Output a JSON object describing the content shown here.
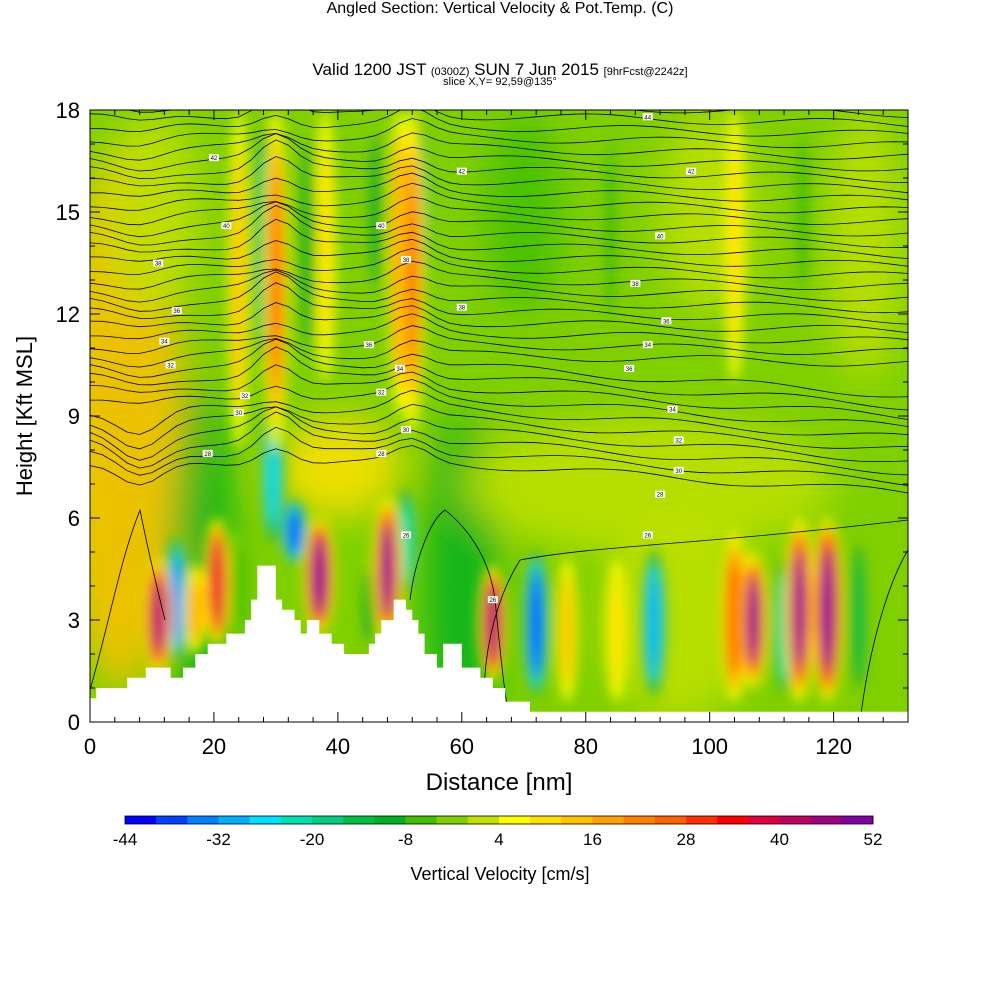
{
  "title": {
    "main": "Angled Section: Vertical Velocity & Pot.Temp.",
    "tag": "(C)",
    "valid_prefix": "Valid 1200 JST",
    "valid_utc": "(0300Z)",
    "valid_date": "SUN 7 Jun 2015",
    "forecast": "[9hrFcst@2242z]",
    "slice": "slice X,Y= 92,59@135°"
  },
  "chart_data": {
    "type": "heatmap",
    "xlabel": "Distance [nm]",
    "ylabel": "Height [Kft MSL]",
    "xlim": [
      0,
      132
    ],
    "ylim": [
      0,
      18
    ],
    "x_ticks": [
      0,
      20,
      40,
      60,
      80,
      100,
      120
    ],
    "y_ticks": [
      0,
      3,
      6,
      9,
      12,
      15,
      18
    ],
    "colorbar": {
      "label": "Vertical Velocity [cm/s]",
      "min": -44,
      "step": 4,
      "tick_labels": [
        "-44",
        "-32",
        "-20",
        "-8",
        "4",
        "16",
        "28",
        "40",
        "52"
      ],
      "colors": [
        "#0000ff",
        "#0040ff",
        "#0080ff",
        "#00b0ff",
        "#00e0ff",
        "#00e0b0",
        "#00d080",
        "#00c040",
        "#00b020",
        "#40c000",
        "#80d000",
        "#c0e000",
        "#ffff00",
        "#ffe000",
        "#ffc000",
        "#ffa000",
        "#ff8000",
        "#ff6000",
        "#ff3000",
        "#ff0000",
        "#e00040",
        "#c00060",
        "#a00080",
        "#8000a0"
      ]
    },
    "updrafts": [
      {
        "x": 11,
        "z_low": 1.4,
        "z_high": 4.8,
        "w": 44
      },
      {
        "x": 17,
        "z_low": 2.0,
        "z_high": 4.6,
        "w": 18
      },
      {
        "x": 20.5,
        "z_low": 2.2,
        "z_high": 6.0,
        "w": 38
      },
      {
        "x": 30,
        "z_low": 8.0,
        "z_high": 18.0,
        "w": 26
      },
      {
        "x": 37,
        "z_low": 2.6,
        "z_high": 6.0,
        "w": 52
      },
      {
        "x": 48,
        "z_low": 2.4,
        "z_high": 6.6,
        "w": 48
      },
      {
        "x": 52,
        "z_low": 8.5,
        "z_high": 18.0,
        "w": 24
      },
      {
        "x": 65,
        "z_low": 1.2,
        "z_high": 4.6,
        "w": 44
      },
      {
        "x": 77,
        "z_low": 0.6,
        "z_high": 4.8,
        "w": 12
      },
      {
        "x": 85,
        "z_low": 0.6,
        "z_high": 4.8,
        "w": 10
      },
      {
        "x": 104,
        "z_low": 0.6,
        "z_high": 5.6,
        "w": 30
      },
      {
        "x": 107,
        "z_low": 1.0,
        "z_high": 5.0,
        "w": 48
      },
      {
        "x": 114.5,
        "z_low": 0.6,
        "z_high": 6.0,
        "w": 48
      },
      {
        "x": 119,
        "z_low": 0.6,
        "z_high": 6.0,
        "w": 52
      }
    ],
    "downdrafts": [
      {
        "x": 14,
        "z_low": 1.6,
        "z_high": 5.6,
        "w": -36
      },
      {
        "x": 24,
        "z_low": 2.4,
        "z_high": 5.6,
        "w": -8
      },
      {
        "x": 29.5,
        "z_low": 5.0,
        "z_high": 9.5,
        "w": -28
      },
      {
        "x": 33,
        "z_low": 4.6,
        "z_high": 6.6,
        "w": -40
      },
      {
        "x": 45,
        "z_low": 2.0,
        "z_high": 4.8,
        "w": -12
      },
      {
        "x": 51,
        "z_low": 3.6,
        "z_high": 7.0,
        "w": -24
      },
      {
        "x": 72,
        "z_low": 0.6,
        "z_high": 5.2,
        "w": -40
      },
      {
        "x": 91,
        "z_low": 0.6,
        "z_high": 5.2,
        "w": -32
      },
      {
        "x": 112,
        "z_low": 0.6,
        "z_high": 5.0,
        "w": -24
      },
      {
        "x": 124,
        "z_low": 0.6,
        "z_high": 5.6,
        "w": -16
      }
    ],
    "upper_ascent": [
      {
        "x": 24,
        "z_low": 8,
        "z_high": 18,
        "w": 12
      },
      {
        "x": 38,
        "z_low": 10,
        "z_high": 18,
        "w": 10
      },
      {
        "x": 50,
        "z_low": 9,
        "z_high": 18,
        "w": 20
      },
      {
        "x": 104,
        "z_low": 10,
        "z_high": 18,
        "w": 8
      }
    ],
    "upper_descent": [
      {
        "x": 28,
        "z_low": 10,
        "z_high": 18,
        "w": -20
      },
      {
        "x": 35,
        "z_low": 10,
        "z_high": 18,
        "w": -10
      },
      {
        "x": 46,
        "z_low": 12,
        "z_high": 18,
        "w": -10
      },
      {
        "x": 53,
        "z_low": 11,
        "z_high": 18,
        "w": -28
      },
      {
        "x": 84,
        "z_low": 11,
        "z_high": 18,
        "w": -6
      },
      {
        "x": 115,
        "z_low": 12,
        "z_high": 18,
        "w": -6
      }
    ],
    "theta_labels": [
      {
        "x": 19,
        "z": 7.9,
        "text": "28"
      },
      {
        "x": 24,
        "z": 9.1,
        "text": "30"
      },
      {
        "x": 25,
        "z": 9.6,
        "text": "32"
      },
      {
        "x": 13,
        "z": 10.5,
        "text": "32"
      },
      {
        "x": 12,
        "z": 11.2,
        "text": "34"
      },
      {
        "x": 14,
        "z": 12.1,
        "text": "36"
      },
      {
        "x": 11,
        "z": 13.5,
        "text": "38"
      },
      {
        "x": 22,
        "z": 14.6,
        "text": "40"
      },
      {
        "x": 20,
        "z": 16.6,
        "text": "42"
      },
      {
        "x": 47,
        "z": 7.9,
        "text": "28"
      },
      {
        "x": 51,
        "z": 8.6,
        "text": "30"
      },
      {
        "x": 47,
        "z": 9.7,
        "text": "32"
      },
      {
        "x": 50,
        "z": 10.4,
        "text": "34"
      },
      {
        "x": 45,
        "z": 11.1,
        "text": "36"
      },
      {
        "x": 60,
        "z": 12.2,
        "text": "38"
      },
      {
        "x": 51,
        "z": 13.6,
        "text": "38"
      },
      {
        "x": 47,
        "z": 14.6,
        "text": "40"
      },
      {
        "x": 60,
        "z": 16.2,
        "text": "42"
      },
      {
        "x": 65,
        "z": 3.6,
        "text": "26"
      },
      {
        "x": 51,
        "z": 5.5,
        "text": "26"
      },
      {
        "x": 90,
        "z": 5.5,
        "text": "26"
      },
      {
        "x": 92,
        "z": 6.7,
        "text": "28"
      },
      {
        "x": 95,
        "z": 7.4,
        "text": "30"
      },
      {
        "x": 95,
        "z": 8.3,
        "text": "32"
      },
      {
        "x": 94,
        "z": 9.2,
        "text": "34"
      },
      {
        "x": 87,
        "z": 10.4,
        "text": "36"
      },
      {
        "x": 90,
        "z": 11.1,
        "text": "34"
      },
      {
        "x": 93,
        "z": 11.8,
        "text": "36"
      },
      {
        "x": 88,
        "z": 12.9,
        "text": "38"
      },
      {
        "x": 92,
        "z": 14.3,
        "text": "40"
      },
      {
        "x": 97,
        "z": 16.2,
        "text": "42"
      },
      {
        "x": 90,
        "z": 17.8,
        "text": "44"
      }
    ],
    "terrain": [
      [
        0,
        0.7
      ],
      [
        1,
        0.7
      ],
      [
        1,
        1.0
      ],
      [
        6,
        1.0
      ],
      [
        6,
        1.3
      ],
      [
        9,
        1.3
      ],
      [
        9,
        1.6
      ],
      [
        13,
        1.6
      ],
      [
        13,
        1.3
      ],
      [
        15,
        1.3
      ],
      [
        15,
        1.6
      ],
      [
        17,
        1.6
      ],
      [
        17,
        2.0
      ],
      [
        19,
        2.0
      ],
      [
        19,
        2.3
      ],
      [
        22,
        2.3
      ],
      [
        22,
        2.6
      ],
      [
        25,
        2.6
      ],
      [
        25,
        3.0
      ],
      [
        26,
        3.0
      ],
      [
        26,
        3.6
      ],
      [
        27,
        3.6
      ],
      [
        27,
        4.6
      ],
      [
        30,
        4.6
      ],
      [
        30,
        3.6
      ],
      [
        31,
        3.6
      ],
      [
        31,
        3.3
      ],
      [
        33,
        3.3
      ],
      [
        33,
        3.0
      ],
      [
        34,
        3.0
      ],
      [
        34,
        2.6
      ],
      [
        35,
        2.6
      ],
      [
        35,
        3.0
      ],
      [
        37,
        3.0
      ],
      [
        37,
        2.6
      ],
      [
        39,
        2.6
      ],
      [
        39,
        2.3
      ],
      [
        41,
        2.3
      ],
      [
        41,
        2.0
      ],
      [
        45,
        2.0
      ],
      [
        45,
        2.3
      ],
      [
        46,
        2.3
      ],
      [
        46,
        2.6
      ],
      [
        47,
        2.6
      ],
      [
        47,
        3.0
      ],
      [
        49,
        3.0
      ],
      [
        49,
        3.6
      ],
      [
        51,
        3.6
      ],
      [
        51,
        3.3
      ],
      [
        52,
        3.3
      ],
      [
        52,
        3.0
      ],
      [
        53,
        3.0
      ],
      [
        53,
        2.6
      ],
      [
        54,
        2.6
      ],
      [
        54,
        2.0
      ],
      [
        56,
        2.0
      ],
      [
        56,
        1.6
      ],
      [
        57,
        1.6
      ],
      [
        57,
        2.3
      ],
      [
        60,
        2.3
      ],
      [
        60,
        1.6
      ],
      [
        63,
        1.6
      ],
      [
        63,
        1.3
      ],
      [
        65,
        1.3
      ],
      [
        65,
        1.0
      ],
      [
        67,
        1.0
      ],
      [
        67,
        0.6
      ],
      [
        71,
        0.6
      ],
      [
        71,
        0.3
      ],
      [
        132,
        0.3
      ]
    ]
  }
}
